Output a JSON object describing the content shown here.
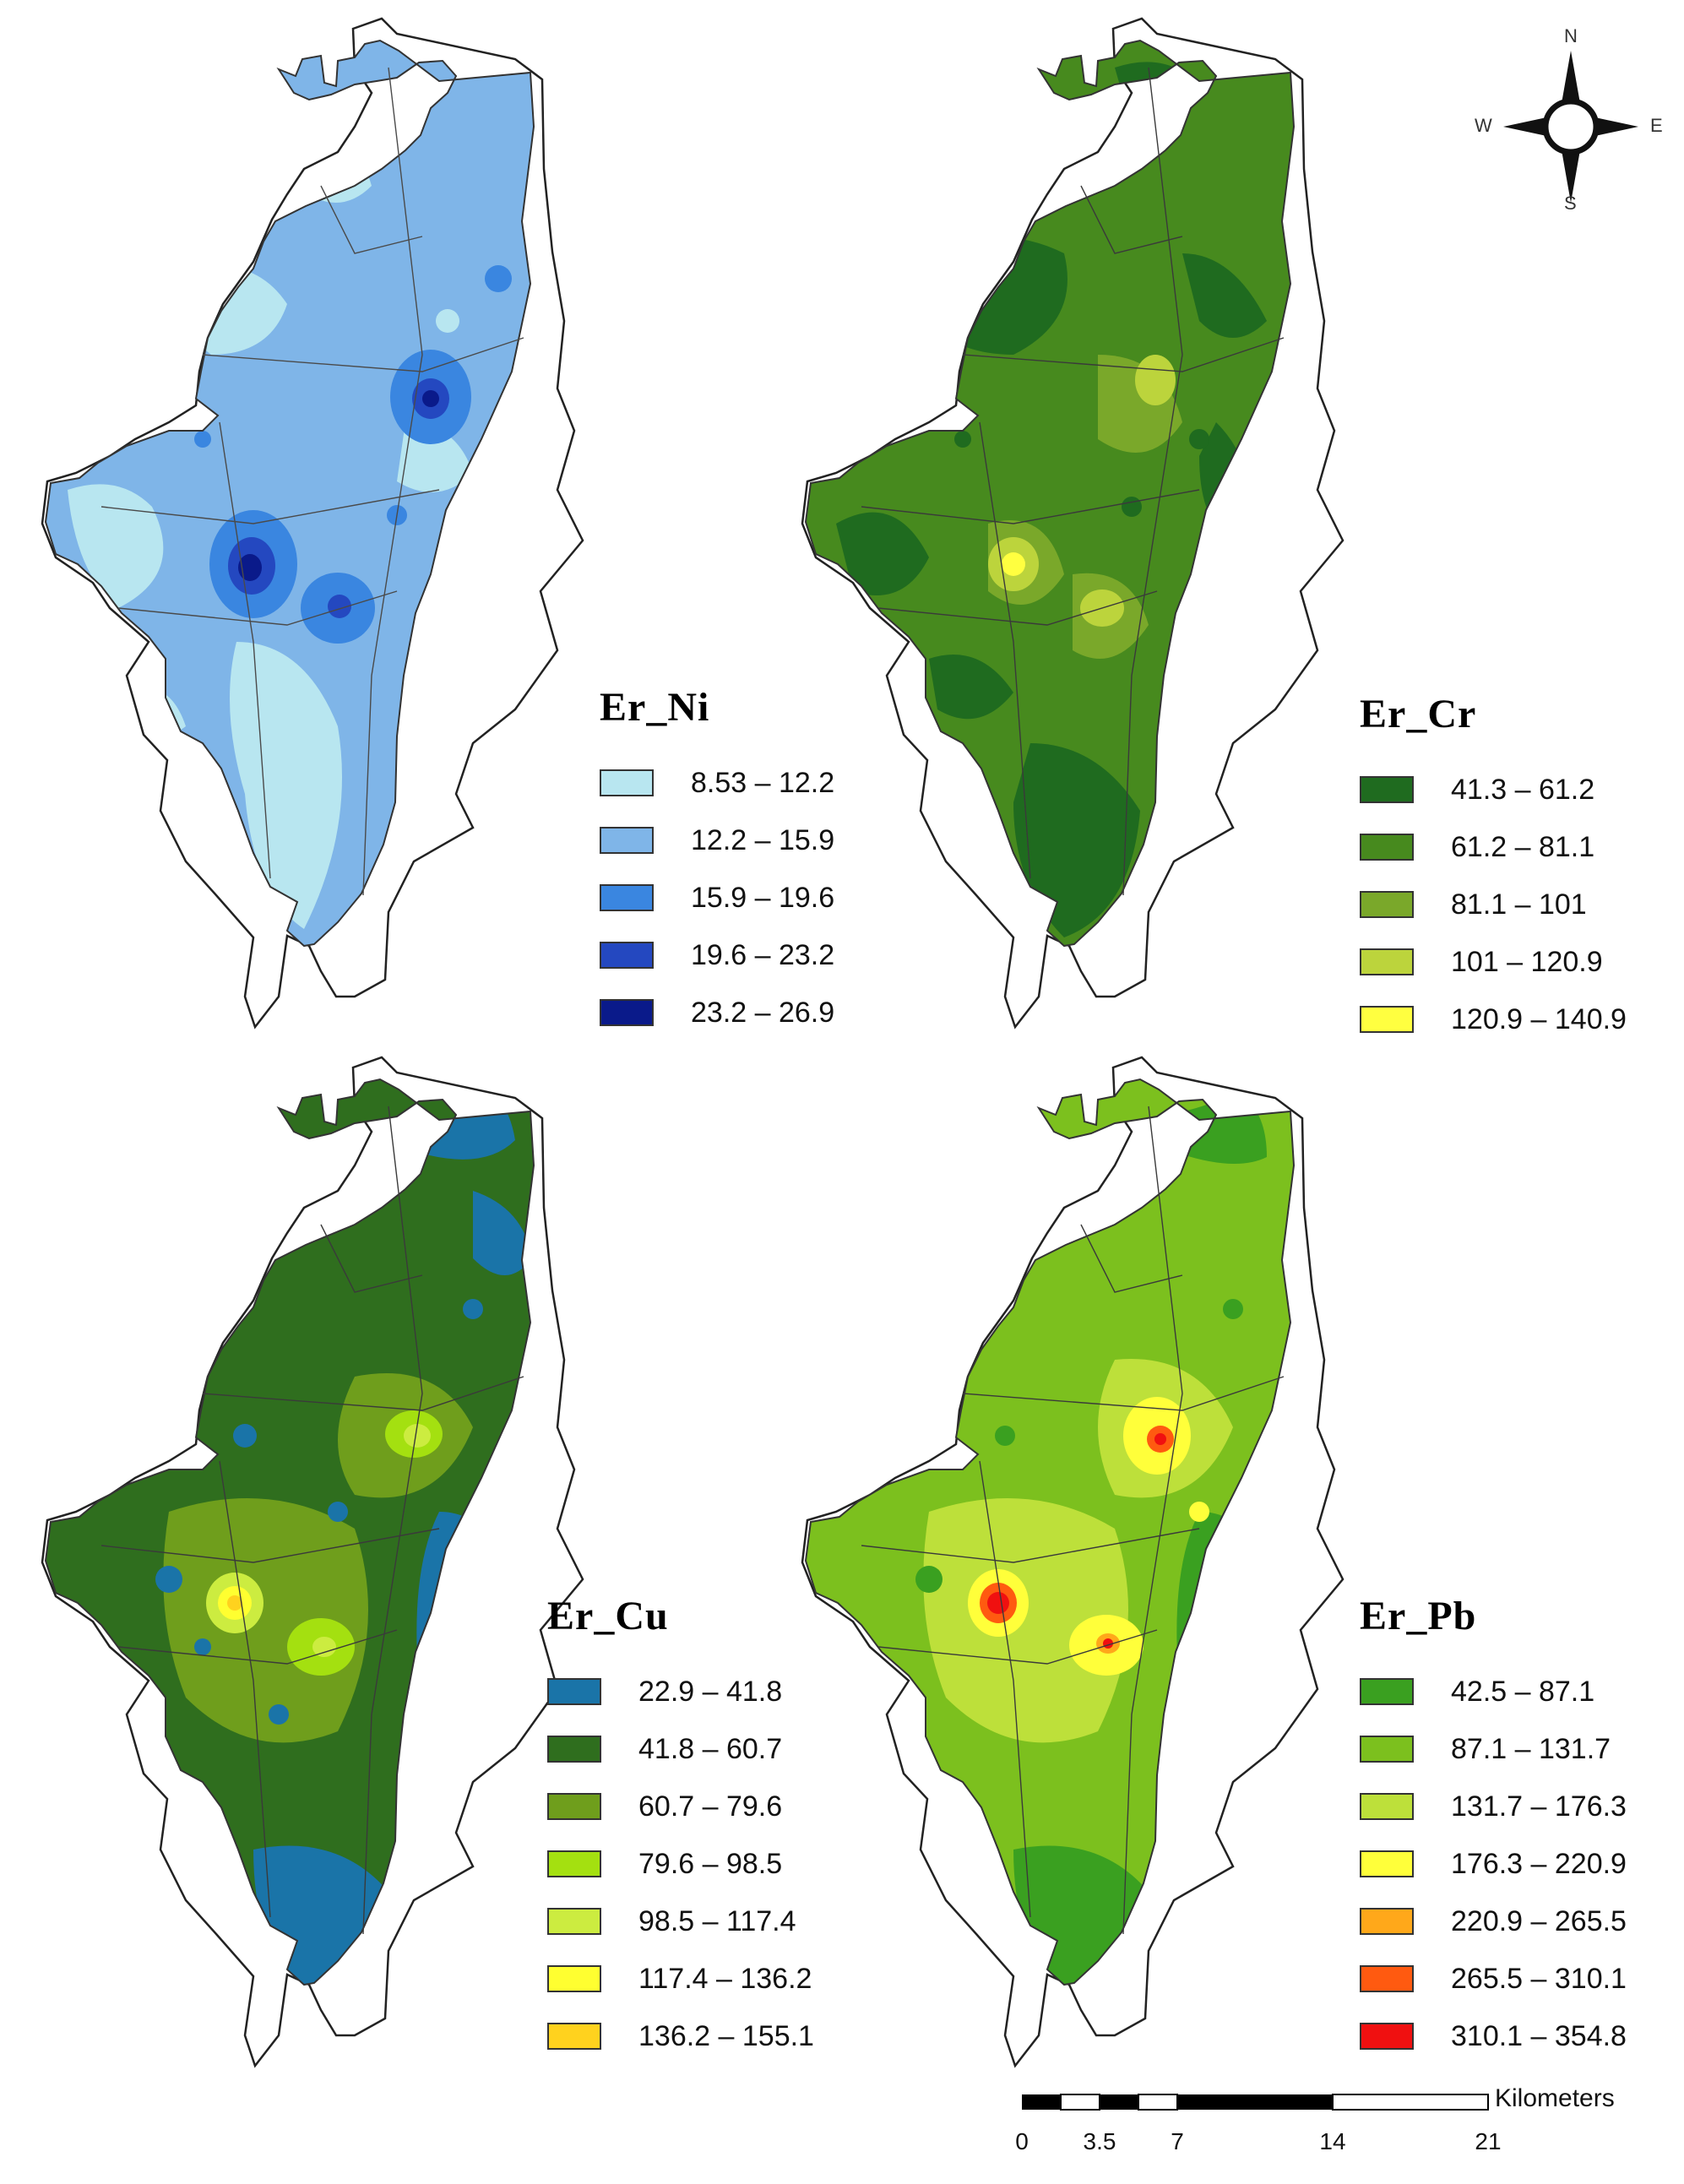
{
  "panels": [
    {
      "title": "Er_Ni",
      "classes": [
        {
          "range": "8.53 – 12.2",
          "color": "#b8e6f0"
        },
        {
          "range": "12.2 – 15.9",
          "color": "#7fb5e8"
        },
        {
          "range": "15.9 – 19.6",
          "color": "#3a86e0"
        },
        {
          "range": "19.6 – 23.2",
          "color": "#2448c0"
        },
        {
          "range": "23.2 – 26.9",
          "color": "#0a1a8a"
        }
      ]
    },
    {
      "title": "Er_Cr",
      "classes": [
        {
          "range": "41.3 – 61.2",
          "color": "#1f6b1f"
        },
        {
          "range": "61.2 – 81.1",
          "color": "#478a1e"
        },
        {
          "range": "81.1 – 101",
          "color": "#7aa82a"
        },
        {
          "range": "101 – 120.9",
          "color": "#bcd43c"
        },
        {
          "range": "120.9 – 140.9",
          "color": "#ffff40"
        }
      ]
    },
    {
      "title": "Er_Cu",
      "classes": [
        {
          "range": "22.9 – 41.8",
          "color": "#1a74a8"
        },
        {
          "range": "41.8 – 60.7",
          "color": "#2f6e1e"
        },
        {
          "range": "60.7 – 79.6",
          "color": "#6f9e1c"
        },
        {
          "range": "79.6 – 98.5",
          "color": "#a4e010"
        },
        {
          "range": "98.5 – 117.4",
          "color": "#ccec40"
        },
        {
          "range": "117.4 – 136.2",
          "color": "#ffff30"
        },
        {
          "range": "136.2 – 155.1",
          "color": "#ffd21e"
        }
      ]
    },
    {
      "title": "Er_Pb",
      "classes": [
        {
          "range": "42.5 – 87.1",
          "color": "#3aa020"
        },
        {
          "range": "87.1 – 131.7",
          "color": "#7cc01e"
        },
        {
          "range": "131.7 – 176.3",
          "color": "#bde03a"
        },
        {
          "range": "176.3 – 220.9",
          "color": "#ffff3a"
        },
        {
          "range": "220.9 – 265.5",
          "color": "#ffa81a"
        },
        {
          "range": "265.5 – 310.1",
          "color": "#ff5a10"
        },
        {
          "range": "310.1 – 354.8",
          "color": "#f01010"
        }
      ]
    }
  ],
  "north_arrow": {
    "n": "N",
    "s": "S",
    "e": "E",
    "w": "W"
  },
  "scale_bar": {
    "units": "Kilometers",
    "labels": [
      "0",
      "3.5",
      "7",
      "14",
      "21"
    ]
  }
}
